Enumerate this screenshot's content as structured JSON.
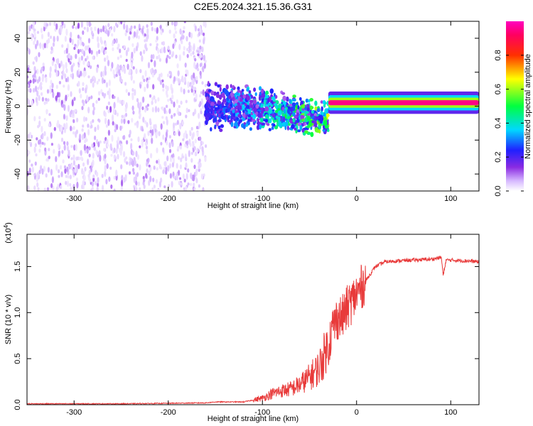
{
  "title": "C2E5.2024.321.15.36.G31",
  "chart_data": [
    {
      "type": "heatmap",
      "xlabel": "Height of straight line (km)",
      "ylabel": "Frequency (Hz)",
      "xlim": [
        -350,
        130
      ],
      "ylim": [
        -50,
        50
      ],
      "x_ticks": [
        -300,
        -200,
        -100,
        0,
        100
      ],
      "x_tick_labels": [
        "-300",
        "-200",
        "-100",
        "0",
        "100"
      ],
      "y_ticks": [
        -40,
        -20,
        0,
        20,
        40
      ],
      "y_tick_labels": [
        "-40",
        "-20",
        "0",
        "20",
        "40"
      ],
      "colorbar": {
        "label": "Normalized spectral amplitude",
        "range": [
          0,
          1
        ],
        "ticks": [
          0.0,
          0.2,
          0.4,
          0.6,
          0.8
        ],
        "tick_labels": [
          "0.0",
          "0.2",
          "0.4",
          "0.6",
          "0.8"
        ],
        "colormap": "rainbow (white-violet-blue-cyan-green-yellow-red-magenta)"
      },
      "regions": [
        {
          "x_range": [
            -350,
            -160
          ],
          "freq_range": [
            -50,
            50
          ],
          "pattern": "scattered noise",
          "amplitude": [
            0.0,
            0.1
          ]
        },
        {
          "x_range": [
            -160,
            -30
          ],
          "freq_range": [
            -15,
            15
          ],
          "pattern": "scattered signal",
          "amplitude": [
            0.1,
            0.5
          ]
        },
        {
          "x_range": [
            -30,
            130
          ],
          "freq_center": 2,
          "freq_width": 3,
          "pattern": "narrow coherent band",
          "amplitude": [
            0.6,
            0.95
          ]
        }
      ]
    },
    {
      "type": "line",
      "xlabel": "Height of straight line (km)",
      "ylabel": "SNR (10 * v/v)",
      "y_multiplier": "(x10",
      "y_multiplier_exp": "4",
      "y_multiplier_close": ")",
      "xlim": [
        -350,
        130
      ],
      "ylim": [
        0,
        1.85
      ],
      "x_ticks": [
        -300,
        -200,
        -100,
        0,
        100
      ],
      "x_tick_labels": [
        "-300",
        "-200",
        "-100",
        "0",
        "100"
      ],
      "y_ticks": [
        0.0,
        0.5,
        1.0,
        1.5
      ],
      "y_tick_labels": [
        "0.0",
        "0.5",
        "1.0",
        "1.5"
      ],
      "line_color": "#e83a3a",
      "series": [
        {
          "x": [
            -350,
            -250,
            -160,
            -150,
            -120,
            -100,
            -90,
            -80,
            -70,
            -60,
            -50,
            -40,
            -30,
            -25,
            -20,
            -15,
            -10,
            0,
            10,
            20,
            30,
            40,
            60,
            80,
            90,
            92,
            95,
            100,
            120,
            130
          ],
          "y": [
            0.01,
            0.01,
            0.02,
            0.03,
            0.03,
            0.07,
            0.12,
            0.15,
            0.17,
            0.22,
            0.3,
            0.4,
            0.65,
            0.85,
            0.95,
            0.95,
            1.05,
            1.2,
            1.35,
            1.5,
            1.55,
            1.56,
            1.57,
            1.58,
            1.6,
            1.4,
            1.57,
            1.57,
            1.56,
            1.55
          ]
        }
      ]
    }
  ]
}
